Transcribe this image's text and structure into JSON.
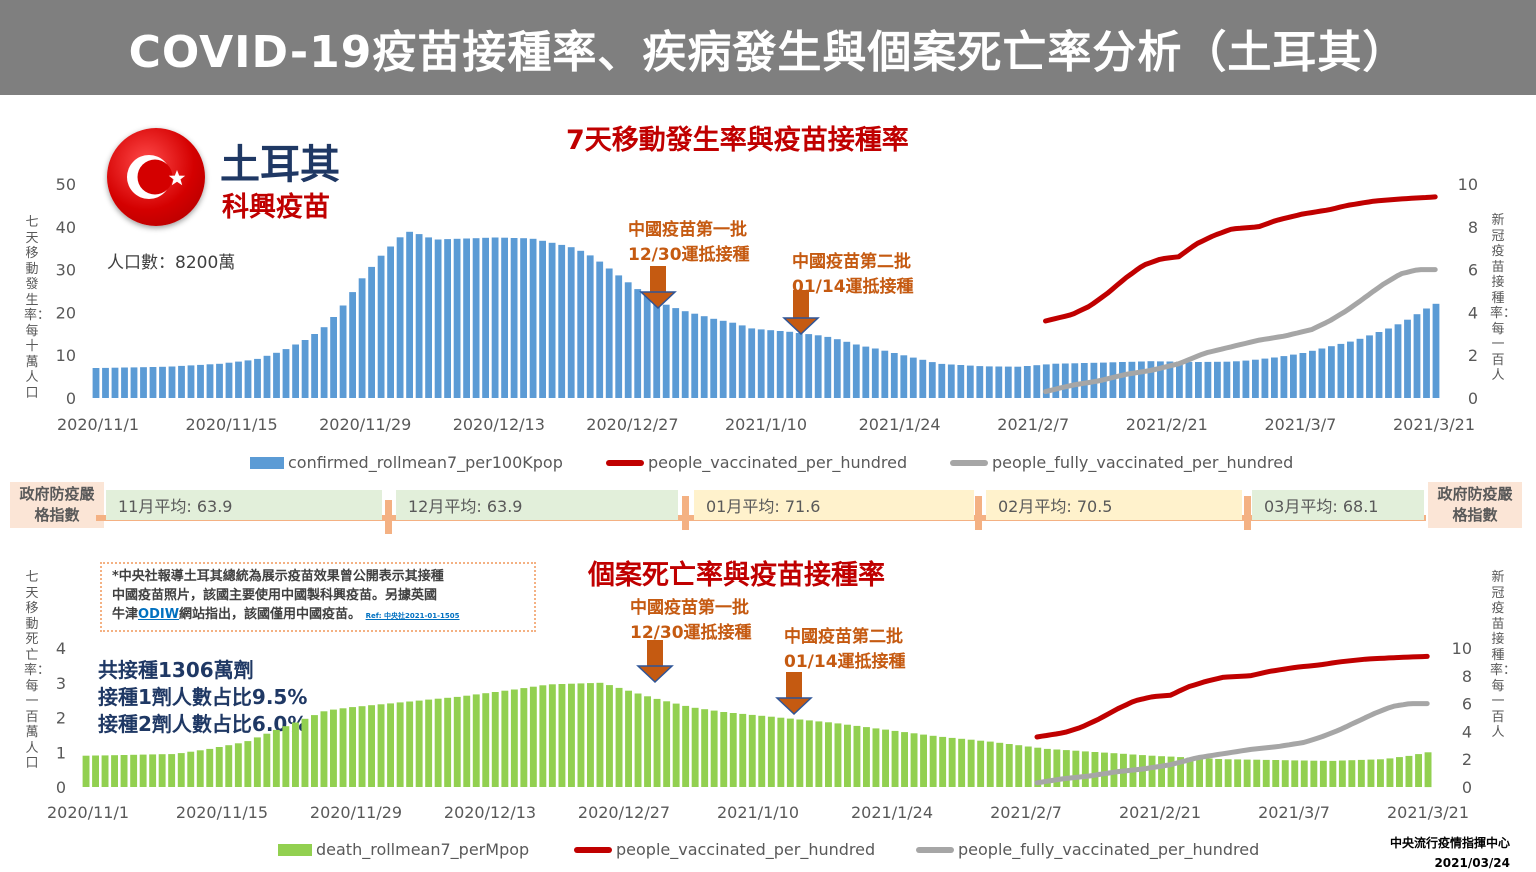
{
  "header": {
    "title": "COVID-19疫苗接種率、疾病發生與個案死亡率分析（土耳其）"
  },
  "country": {
    "name": "土耳其",
    "vaccine": "科興疫苗",
    "population": "人口數：8200萬"
  },
  "top_chart": {
    "title": "7天移動發生率與疫苗接種率",
    "left_axis_label": "七天移動發生率：每十萬人口",
    "right_axis_label": "新冠疫苗接種率：每一百人",
    "annotation1": {
      "line1": "中國疫苗第一批",
      "line2": "12/30運抵接種"
    },
    "annotation2": {
      "line1": "中國疫苗第二批",
      "line2": "01/14運抵接種"
    },
    "legend": {
      "bar": "confirmed_rollmean7_per100Kpop",
      "line1": "people_vaccinated_per_hundred",
      "line2": "people_fully_vaccinated_per_hundred"
    }
  },
  "stringency": {
    "label_left": "政府防疫嚴格指數",
    "label_right": "政府防疫嚴格指數",
    "months": [
      {
        "text": "11月平均: 63.9",
        "color": "#e2efda"
      },
      {
        "text": "12月平均: 63.9",
        "color": "#e2efda"
      },
      {
        "text": "01月平均: 71.6",
        "color": "#fff2cc"
      },
      {
        "text": "02月平均: 70.5",
        "color": "#fff2cc"
      },
      {
        "text": "03月平均: 68.1",
        "color": "#e2efda"
      }
    ]
  },
  "bottom_chart": {
    "title": "個案死亡率與疫苗接種率",
    "left_axis_label": "七天移動死亡率：每一百萬人口",
    "right_axis_label": "新冠疫苗接種率：每一百人",
    "annotation1": {
      "line1": "中國疫苗第一批",
      "line2": "12/30運抵接種"
    },
    "annotation2": {
      "line1": "中國疫苗第二批",
      "line2": "01/14運抵接種"
    },
    "legend": {
      "bar": "death_rollmean7_perMpop",
      "line1": "people_vaccinated_per_hundred",
      "line2": "people_fully_vaccinated_per_hundred"
    }
  },
  "note": {
    "line1": "*中央社報導土耳其總統為展示疫苗效果曾公開表示其接種",
    "line2": "中國疫苗照片，該國主要使用中國製科興疫苗。另據英國",
    "line3a": "牛津",
    "link": "ODIW",
    "line3b": "網站指出，該國僅用中國疫苗。",
    "ref": "Ref: 中央社2021-01-1505"
  },
  "stats": {
    "line1": "共接種1306萬劑",
    "line2": "接種1劑人數占比9.5%",
    "line3": "接種2劑人數占比6.0%"
  },
  "footer": {
    "org": "中央流行疫情指揮中心",
    "date": "2021/03/24"
  },
  "colors": {
    "cases_bar": "#5b9bd5",
    "deaths_bar": "#92d050",
    "vaccinated": "#c00000",
    "fully": "#a6a6a6"
  },
  "chart_data": [
    {
      "type": "bar+line",
      "title": "7天移動發生率與疫苗接種率",
      "x_tick_labels": [
        "2020/11/1",
        "2020/11/15",
        "2020/11/29",
        "2020/12/13",
        "2020/12/27",
        "2021/1/10",
        "2021/1/24",
        "2021/2/7",
        "2021/2/21",
        "2021/3/7",
        "2021/3/21"
      ],
      "left_ylim": [
        0,
        50
      ],
      "left_ticks": [
        0,
        10,
        20,
        30,
        40,
        50
      ],
      "right_ylim": [
        0,
        10
      ],
      "right_ticks": [
        0,
        2,
        4,
        6,
        8,
        10
      ],
      "bar_series": {
        "name": "confirmed_rollmean7_per100Kpop",
        "keypoints_day_value": [
          [
            0,
            7
          ],
          [
            8,
            7.3
          ],
          [
            14,
            8
          ],
          [
            18,
            9
          ],
          [
            21,
            11
          ],
          [
            24,
            14
          ],
          [
            26,
            17
          ],
          [
            28,
            22
          ],
          [
            30,
            28
          ],
          [
            32,
            33
          ],
          [
            34,
            37
          ],
          [
            35,
            39
          ],
          [
            37,
            38
          ],
          [
            38,
            37
          ],
          [
            45,
            37.5
          ],
          [
            49,
            37.3
          ],
          [
            52,
            36
          ],
          [
            54,
            35
          ],
          [
            56,
            33
          ],
          [
            58,
            30
          ],
          [
            60,
            27
          ],
          [
            62,
            24
          ],
          [
            64,
            22
          ],
          [
            66,
            20.5
          ],
          [
            70,
            18.3
          ],
          [
            72,
            17.5
          ],
          [
            74,
            16.2
          ],
          [
            78,
            15.5
          ],
          [
            82,
            14.5
          ],
          [
            84,
            13.5
          ],
          [
            86,
            12.3
          ],
          [
            88,
            11.5
          ],
          [
            92,
            9.5
          ],
          [
            95,
            8
          ],
          [
            100,
            7.4
          ],
          [
            104,
            7.3
          ],
          [
            108,
            8
          ],
          [
            114,
            8.3
          ],
          [
            119,
            8.6
          ],
          [
            124,
            8.4
          ],
          [
            128,
            8.5
          ],
          [
            130,
            8.8
          ],
          [
            133,
            9.5
          ],
          [
            136,
            10.5
          ],
          [
            138,
            11.5
          ],
          [
            140,
            12.5
          ],
          [
            142,
            13.5
          ],
          [
            144,
            15
          ],
          [
            146,
            16.5
          ],
          [
            148,
            18.5
          ],
          [
            150,
            21
          ],
          [
            151,
            22
          ]
        ]
      },
      "line_series": [
        {
          "name": "people_vaccinated_per_hundred",
          "keypoints_day_value": [
            [
              107,
              3.6
            ],
            [
              110,
              3.9
            ],
            [
              112,
              4.3
            ],
            [
              114,
              4.9
            ],
            [
              116,
              5.6
            ],
            [
              118,
              6.2
            ],
            [
              120,
              6.5
            ],
            [
              122,
              6.6
            ],
            [
              124,
              7.2
            ],
            [
              126,
              7.6
            ],
            [
              128,
              7.9
            ],
            [
              131,
              8.0
            ],
            [
              133,
              8.3
            ],
            [
              136,
              8.6
            ],
            [
              139,
              8.8
            ],
            [
              141,
              9.0
            ],
            [
              144,
              9.2
            ],
            [
              147,
              9.3
            ],
            [
              151,
              9.4
            ]
          ]
        },
        {
          "name": "people_fully_vaccinated_per_hundred",
          "keypoints_day_value": [
            [
              107,
              0.3
            ],
            [
              110,
              0.6
            ],
            [
              113,
              0.8
            ],
            [
              116,
              1.1
            ],
            [
              119,
              1.3
            ],
            [
              122,
              1.6
            ],
            [
              125,
              2.1
            ],
            [
              128,
              2.4
            ],
            [
              131,
              2.7
            ],
            [
              134,
              2.9
            ],
            [
              137,
              3.2
            ],
            [
              139,
              3.6
            ],
            [
              141,
              4.1
            ],
            [
              143,
              4.7
            ],
            [
              145,
              5.3
            ],
            [
              147,
              5.8
            ],
            [
              149,
              6.0
            ],
            [
              151,
              6.0
            ]
          ]
        }
      ]
    },
    {
      "type": "bar+line",
      "title": "個案死亡率與疫苗接種率",
      "x_tick_labels": [
        "2020/11/1",
        "2020/11/15",
        "2020/11/29",
        "2020/12/13",
        "2020/12/27",
        "2021/1/10",
        "2021/1/24",
        "2021/2/7",
        "2021/2/21",
        "2021/3/7",
        "2021/3/21"
      ],
      "left_ylim": [
        0,
        4
      ],
      "left_ticks": [
        0,
        1,
        2,
        3,
        4
      ],
      "right_ylim": [
        0,
        10
      ],
      "right_ticks": [
        0,
        2,
        4,
        6,
        8,
        10
      ],
      "bar_series": {
        "name": "death_rollmean7_perMpop",
        "keypoints_day_value": [
          [
            0,
            0.9
          ],
          [
            10,
            0.95
          ],
          [
            14,
            1.1
          ],
          [
            18,
            1.3
          ],
          [
            21,
            1.6
          ],
          [
            24,
            1.9
          ],
          [
            27,
            2.2
          ],
          [
            30,
            2.3
          ],
          [
            36,
            2.45
          ],
          [
            42,
            2.6
          ],
          [
            48,
            2.8
          ],
          [
            52,
            2.95
          ],
          [
            58,
            3.0
          ],
          [
            60,
            2.85
          ],
          [
            64,
            2.55
          ],
          [
            68,
            2.3
          ],
          [
            72,
            2.15
          ],
          [
            78,
            2.0
          ],
          [
            84,
            1.85
          ],
          [
            90,
            1.65
          ],
          [
            96,
            1.45
          ],
          [
            102,
            1.3
          ],
          [
            108,
            1.1
          ],
          [
            114,
            1.0
          ],
          [
            120,
            0.9
          ],
          [
            128,
            0.8
          ],
          [
            140,
            0.75
          ],
          [
            146,
            0.8
          ],
          [
            149,
            0.9
          ],
          [
            151,
            1.0
          ]
        ]
      },
      "line_series": [
        {
          "name": "people_vaccinated_per_hundred",
          "keypoints_day_value": [
            [
              107,
              3.6
            ],
            [
              110,
              3.9
            ],
            [
              112,
              4.3
            ],
            [
              114,
              4.9
            ],
            [
              116,
              5.6
            ],
            [
              118,
              6.2
            ],
            [
              120,
              6.5
            ],
            [
              122,
              6.6
            ],
            [
              124,
              7.2
            ],
            [
              126,
              7.6
            ],
            [
              128,
              7.9
            ],
            [
              131,
              8.0
            ],
            [
              133,
              8.3
            ],
            [
              136,
              8.6
            ],
            [
              139,
              8.8
            ],
            [
              141,
              9.0
            ],
            [
              144,
              9.2
            ],
            [
              147,
              9.3
            ],
            [
              151,
              9.4
            ]
          ]
        },
        {
          "name": "people_fully_vaccinated_per_hundred",
          "keypoints_day_value": [
            [
              107,
              0.3
            ],
            [
              110,
              0.6
            ],
            [
              113,
              0.8
            ],
            [
              116,
              1.1
            ],
            [
              119,
              1.3
            ],
            [
              122,
              1.6
            ],
            [
              125,
              2.1
            ],
            [
              128,
              2.4
            ],
            [
              131,
              2.7
            ],
            [
              134,
              2.9
            ],
            [
              137,
              3.2
            ],
            [
              139,
              3.6
            ],
            [
              141,
              4.1
            ],
            [
              143,
              4.7
            ],
            [
              145,
              5.3
            ],
            [
              147,
              5.8
            ],
            [
              149,
              6.0
            ],
            [
              151,
              6.0
            ]
          ]
        }
      ]
    }
  ]
}
